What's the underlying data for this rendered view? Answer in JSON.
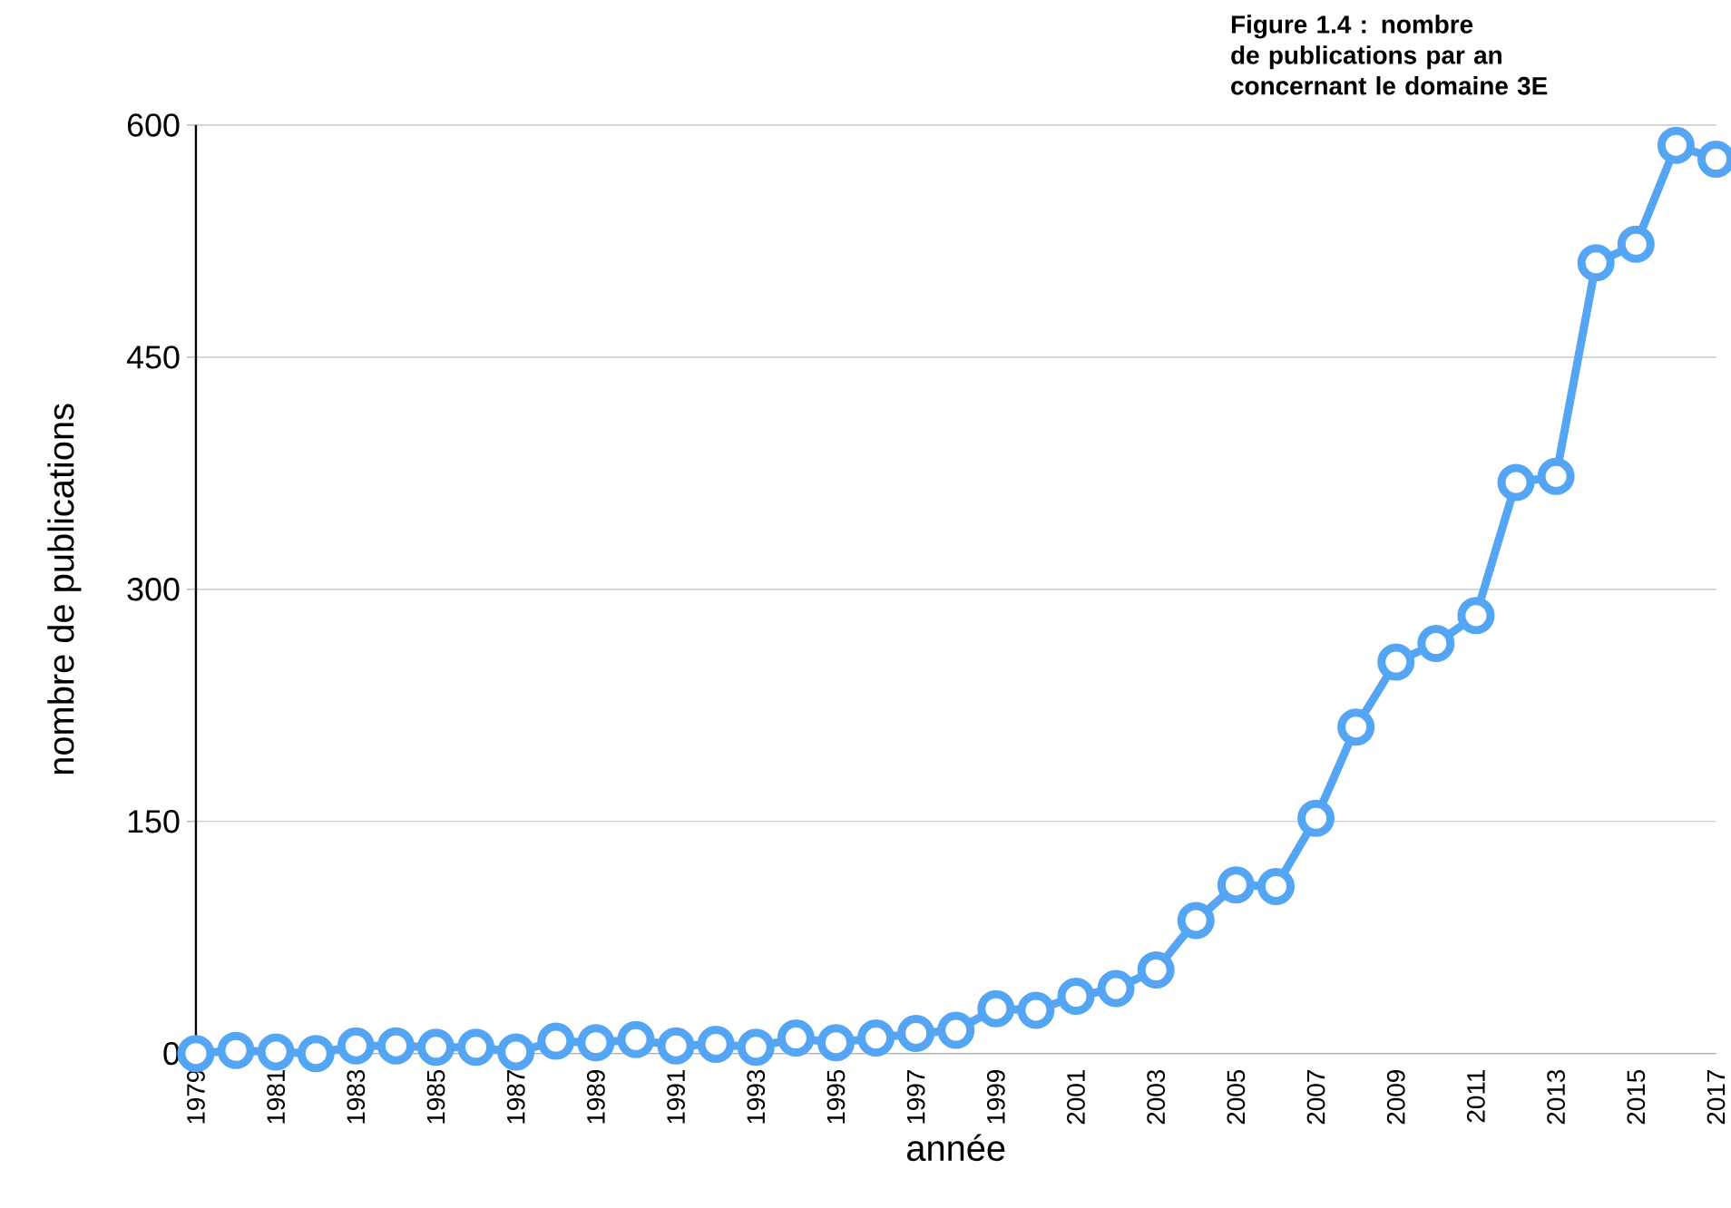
{
  "chart_data": {
    "type": "line",
    "xlabel": "année",
    "ylabel": "nombre de publications",
    "annotations": [
      "**Figure 1.4 : nombre de publications par an concernant le domaine 3E**"
    ],
    "x": [
      1979,
      1980,
      1981,
      1982,
      1983,
      1984,
      1985,
      1986,
      1987,
      1988,
      1989,
      1990,
      1991,
      1992,
      1993,
      1994,
      1995,
      1996,
      1997,
      1998,
      1999,
      2000,
      2001,
      2002,
      2003,
      2004,
      2005,
      2006,
      2007,
      2008,
      2009,
      2010,
      2011,
      2012,
      2013,
      2014,
      2015,
      2016,
      2017
    ],
    "values": [
      0,
      2,
      1,
      0,
      5,
      5,
      4,
      4,
      1,
      8,
      7,
      9,
      5,
      6,
      4,
      10,
      7,
      10,
      13,
      15,
      29,
      28,
      37,
      42,
      54,
      86,
      109,
      108,
      152,
      211,
      253,
      265,
      283,
      369,
      373,
      511,
      523,
      587,
      578
    ],
    "color": "#55a5f5",
    "marker": "circle",
    "line_style": "solid",
    "grid": "y",
    "xlim": [
      1979,
      2017
    ],
    "ylim": [
      0,
      600
    ],
    "xticks": [
      1979,
      1981,
      1983,
      1985,
      1987,
      1989,
      1991,
      1993,
      1995,
      1997,
      1999,
      2001,
      2003,
      2005,
      2007,
      2009,
      2011,
      2013,
      2015,
      2017
    ],
    "yticks": [
      0,
      150,
      300,
      450,
      600
    ]
  }
}
